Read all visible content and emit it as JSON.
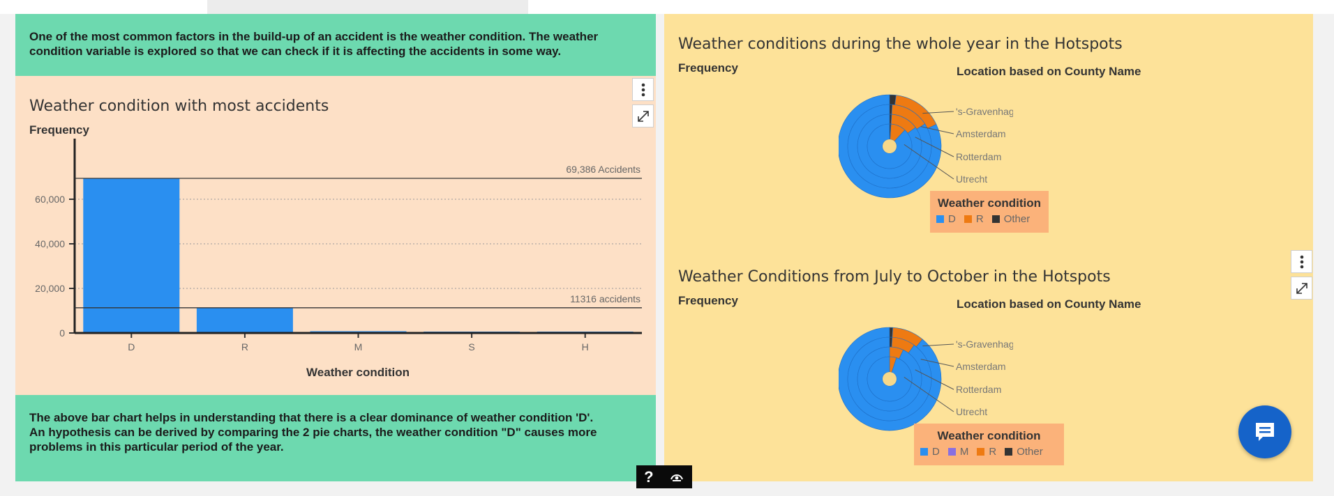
{
  "top_intro_text": "One of the most common factors in the build-up of an accident is the weather condition. The weather condition variable is explored so that we can check if it is affecting the accidents in some way.",
  "bottom_text": "The above bar chart helps in understanding that there is a clear dominance of weather condition 'D'. An hypothesis can be derived by comparing the 2 pie charts, the weather condition \"D\" causes more problems in this particular period of the year.",
  "bar_chart": {
    "title": "Weather condition with most accidents",
    "ylabel": "Frequency",
    "xlabel": "Weather condition",
    "ref_lines": [
      {
        "value": 69386,
        "label": "69,386 Accidents"
      },
      {
        "value": 11316,
        "label": "11316 accidents"
      }
    ]
  },
  "pie_top": {
    "title": "Weather conditions during the whole year in the Hotspots",
    "ylabel": "Frequency",
    "location_label": "Location based on County Name",
    "legend_title": "Weather condition",
    "legend": [
      {
        "label": "D",
        "color": "#2a8ff0"
      },
      {
        "label": "R",
        "color": "#ee7a12"
      },
      {
        "label": "Other",
        "color": "#333333"
      }
    ]
  },
  "pie_bottom": {
    "title": "Weather Conditions from July to October in the Hotspots",
    "ylabel": "Frequency",
    "location_label": "Location based on County Name",
    "legend_title": "Weather condition",
    "legend": [
      {
        "label": "D",
        "color": "#2a8ff0"
      },
      {
        "label": "M",
        "color": "#8a6fe0"
      },
      {
        "label": "R",
        "color": "#ee7a12"
      },
      {
        "label": "Other",
        "color": "#333333"
      }
    ]
  },
  "help_label": "?",
  "chart_data": [
    {
      "type": "bar",
      "title": "Weather condition with most accidents",
      "xlabel": "Weather condition",
      "ylabel": "Frequency",
      "categories": [
        "D",
        "R",
        "M",
        "S",
        "H"
      ],
      "values": [
        69386,
        11316,
        800,
        400,
        100
      ],
      "yticks": [
        0,
        20000,
        40000,
        60000
      ],
      "ytick_labels": [
        "0",
        "20,000",
        "40,000",
        "60,000"
      ],
      "ylim": [
        0,
        70000
      ],
      "color": "#2a8ff0"
    },
    {
      "type": "pie",
      "title": "Weather conditions during the whole year in the Hotspots",
      "rings": [
        "'s-Gravenhage",
        "Amsterdam",
        "Rotterdam",
        "Utrecht"
      ],
      "series": [
        {
          "ring": "'s-Gravenhage",
          "slices": [
            {
              "label": "D",
              "value": 0.82
            },
            {
              "label": "R",
              "value": 0.16
            },
            {
              "label": "Other",
              "value": 0.02
            }
          ]
        },
        {
          "ring": "Amsterdam",
          "slices": [
            {
              "label": "D",
              "value": 0.84
            },
            {
              "label": "R",
              "value": 0.15
            },
            {
              "label": "Other",
              "value": 0.01
            }
          ]
        },
        {
          "ring": "Rotterdam",
          "slices": [
            {
              "label": "D",
              "value": 0.85
            },
            {
              "label": "R",
              "value": 0.14
            },
            {
              "label": "Other",
              "value": 0.01
            }
          ]
        },
        {
          "ring": "Utrecht",
          "slices": [
            {
              "label": "D",
              "value": 0.88
            },
            {
              "label": "R",
              "value": 0.11
            },
            {
              "label": "Other",
              "value": 0.01
            }
          ]
        }
      ]
    },
    {
      "type": "pie",
      "title": "Weather Conditions from July to October in the Hotspots",
      "rings": [
        "'s-Gravenhage",
        "Amsterdam",
        "Rotterdam",
        "Utrecht"
      ],
      "series": [
        {
          "ring": "'s-Gravenhage",
          "slices": [
            {
              "label": "D",
              "value": 0.89
            },
            {
              "label": "M",
              "value": 0.0
            },
            {
              "label": "R",
              "value": 0.1
            },
            {
              "label": "Other",
              "value": 0.01
            }
          ]
        },
        {
          "ring": "Amsterdam",
          "slices": [
            {
              "label": "D",
              "value": 0.9
            },
            {
              "label": "M",
              "value": 0.0
            },
            {
              "label": "R",
              "value": 0.09
            },
            {
              "label": "Other",
              "value": 0.01
            }
          ]
        },
        {
          "ring": "Rotterdam",
          "slices": [
            {
              "label": "D",
              "value": 0.93
            },
            {
              "label": "M",
              "value": 0.0
            },
            {
              "label": "R",
              "value": 0.07
            },
            {
              "label": "Other",
              "value": 0.0
            }
          ]
        },
        {
          "ring": "Utrecht",
          "slices": [
            {
              "label": "D",
              "value": 0.95
            },
            {
              "label": "M",
              "value": 0.0
            },
            {
              "label": "R",
              "value": 0.05
            },
            {
              "label": "Other",
              "value": 0.0
            }
          ]
        }
      ]
    }
  ]
}
